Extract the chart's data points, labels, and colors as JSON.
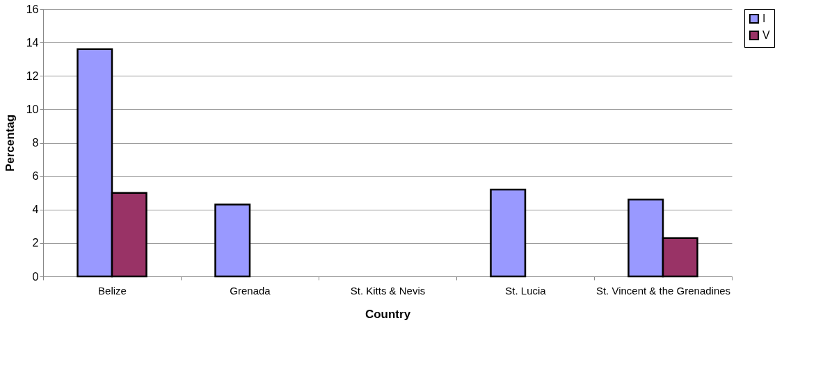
{
  "chart_data": {
    "type": "bar",
    "xlabel": "Country",
    "ylabel": "Percentag",
    "categories": [
      "Belize",
      "Grenada",
      "St. Kitts & Nevis",
      "St. Lucia",
      "St. Vincent & the Grenadines"
    ],
    "series": [
      {
        "name": "I",
        "color": "#9999ff",
        "values": [
          13.6,
          4.3,
          null,
          5.2,
          4.6
        ]
      },
      {
        "name": "V",
        "color": "#993366",
        "values": [
          5.0,
          null,
          null,
          null,
          2.3
        ]
      }
    ],
    "ylim": [
      0,
      16
    ],
    "yticks": [
      0,
      2,
      4,
      6,
      8,
      10,
      12,
      14,
      16
    ],
    "grid": "y",
    "legend": "right"
  }
}
